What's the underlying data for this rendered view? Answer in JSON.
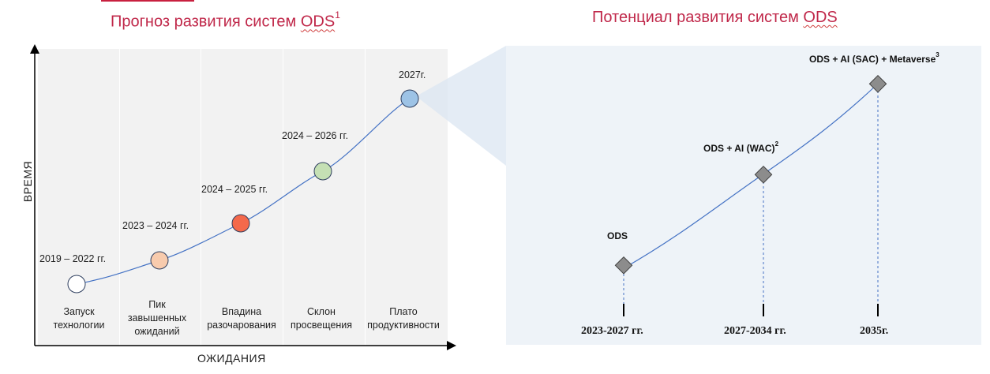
{
  "left_title": {
    "text": "Прогноз развития систем",
    "ods": "ODS",
    "sup": "1"
  },
  "right_title": {
    "text": "Потенциал развития систем",
    "ods": "ODS"
  },
  "left_chart": {
    "y_axis_label": "ВРЕМЯ",
    "x_axis_label": "ОЖИДАНИЯ",
    "stages": [
      {
        "date": "2019 – 2022 гг.",
        "label_lines": [
          "Запуск",
          "технологии"
        ],
        "color": "#ffffff"
      },
      {
        "date": "2023 – 2024 гг.",
        "label_lines": [
          "Пик",
          "завышенных",
          "ожиданий"
        ],
        "color": "#f8cbad"
      },
      {
        "date": "2024 – 2025 гг.",
        "label_lines": [
          "Впадина",
          "разочарования"
        ],
        "color": "#f4694b"
      },
      {
        "date": "2024 – 2026 гг.",
        "label_lines": [
          "Склон",
          "просвещения"
        ],
        "color": "#c5e0b4"
      },
      {
        "date": "2027г.",
        "label_lines": [
          "Плато",
          "продуктивности"
        ],
        "color": "#9dc3e6"
      }
    ]
  },
  "right_chart": {
    "milestones": [
      {
        "label": "ODS",
        "sup": "",
        "period": "2023-2027 гг."
      },
      {
        "label": "ODS + AI (WAC)",
        "sup": "2",
        "period": "2027-2034 гг."
      },
      {
        "label": "ODS + AI (SAC) + Metaverse",
        "sup": "3",
        "period": "2035г."
      }
    ]
  },
  "colors": {
    "title": "#c0284a",
    "curve": "#4472c4",
    "marker": "#8c8c8c"
  }
}
